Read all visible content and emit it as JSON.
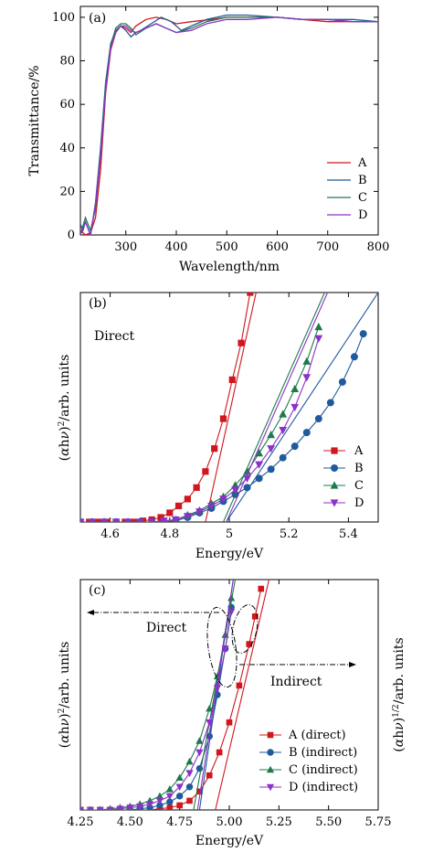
{
  "colors": {
    "A": "#d0161e",
    "B": "#1f5a9c",
    "C": "#1e7a4a",
    "D": "#8b32c8"
  },
  "chart_data": [
    {
      "id": "a",
      "type": "line",
      "panel_label": "(a)",
      "xlabel": "Wavelength/nm",
      "ylabel": "Transmittance/%",
      "xlim": [
        210,
        800
      ],
      "ylim": [
        0,
        105
      ],
      "xticks": [
        300,
        400,
        500,
        600,
        700,
        800
      ],
      "yticks": [
        0,
        20,
        40,
        60,
        80,
        100
      ],
      "legend": "right",
      "series": [
        {
          "name": "A",
          "key": "A",
          "x": [
            210,
            220,
            230,
            240,
            250,
            260,
            270,
            280,
            290,
            300,
            310,
            320,
            340,
            360,
            380,
            400,
            430,
            470,
            500,
            540,
            600,
            650,
            700,
            750,
            800
          ],
          "y": [
            2,
            0,
            1,
            8,
            30,
            65,
            85,
            93,
            96,
            95,
            93,
            96,
            99,
            100,
            99,
            97,
            98,
            99,
            100,
            100,
            100,
            99,
            98,
            98,
            98
          ]
        },
        {
          "name": "B",
          "key": "B",
          "x": [
            210,
            215,
            220,
            230,
            240,
            250,
            260,
            270,
            280,
            290,
            300,
            310,
            320,
            330,
            350,
            370,
            390,
            410,
            430,
            460,
            500,
            540,
            600,
            650,
            700,
            750,
            800
          ],
          "y": [
            5,
            2,
            6,
            0,
            15,
            40,
            70,
            88,
            94,
            96,
            94,
            91,
            93,
            94,
            97,
            100,
            98,
            94,
            96,
            99,
            101,
            101,
            100,
            99,
            99,
            99,
            98
          ]
        },
        {
          "name": "C",
          "key": "C",
          "x": [
            210,
            220,
            230,
            240,
            250,
            260,
            270,
            280,
            290,
            300,
            310,
            320,
            340,
            360,
            380,
            400,
            430,
            460,
            500,
            540,
            600,
            650,
            700,
            750,
            800
          ],
          "y": [
            0,
            8,
            2,
            12,
            38,
            68,
            87,
            95,
            97,
            97,
            95,
            92,
            95,
            97,
            95,
            93,
            95,
            98,
            100,
            100,
            100,
            99,
            99,
            98,
            98
          ]
        },
        {
          "name": "D",
          "key": "D",
          "x": [
            210,
            220,
            230,
            240,
            250,
            260,
            270,
            280,
            290,
            300,
            310,
            320,
            340,
            360,
            380,
            400,
            430,
            460,
            500,
            540,
            600,
            650,
            700,
            750,
            800
          ],
          "y": [
            0,
            6,
            0,
            14,
            36,
            66,
            86,
            93,
            96,
            96,
            94,
            93,
            95,
            97,
            95,
            93,
            94,
            97,
            99,
            99,
            100,
            99,
            99,
            98,
            98
          ]
        }
      ]
    },
    {
      "id": "b",
      "type": "scatter",
      "panel_label": "(b)",
      "annotation": "Direct",
      "xlabel": "Energy/eV",
      "ylabel": "(αhν)²/arb. units",
      "xlim": [
        4.5,
        5.5
      ],
      "ylim": [
        0,
        100
      ],
      "xticks": [
        4.6,
        4.8,
        5.0,
        5.2,
        5.4
      ],
      "legend": "right",
      "series": [
        {
          "name": "A",
          "key": "A",
          "marker": "square",
          "x": [
            4.5,
            4.53,
            4.56,
            4.59,
            4.62,
            4.65,
            4.68,
            4.71,
            4.74,
            4.77,
            4.8,
            4.83,
            4.86,
            4.89,
            4.92,
            4.95,
            4.98,
            5.01,
            5.04,
            5.07
          ],
          "y": [
            0,
            0,
            0,
            0,
            0,
            0,
            0,
            0.5,
            1,
            2,
            4,
            7,
            10,
            15,
            22,
            32,
            45,
            62,
            78,
            100
          ],
          "fit": {
            "x": [
              4.92,
              5.09
            ],
            "y": [
              0,
              100
            ]
          }
        },
        {
          "name": "B",
          "key": "B",
          "marker": "circle",
          "x": [
            4.5,
            4.54,
            4.58,
            4.62,
            4.66,
            4.7,
            4.74,
            4.78,
            4.82,
            4.86,
            4.9,
            4.94,
            4.98,
            5.02,
            5.06,
            5.1,
            5.14,
            5.18,
            5.22,
            5.26,
            5.3,
            5.34,
            5.38,
            5.42,
            5.45
          ],
          "y": [
            0,
            0,
            0,
            0,
            0,
            0,
            0,
            0,
            0.5,
            2,
            4,
            6,
            9,
            12,
            15,
            19,
            23,
            28,
            33,
            39,
            45,
            52,
            61,
            72,
            82
          ],
          "fit": {
            "x": [
              4.99,
              5.5
            ],
            "y": [
              0,
              100
            ]
          }
        },
        {
          "name": "C",
          "key": "C",
          "marker": "triangle-up",
          "x": [
            4.5,
            4.54,
            4.58,
            4.62,
            4.66,
            4.7,
            4.74,
            4.78,
            4.82,
            4.86,
            4.9,
            4.94,
            4.98,
            5.02,
            5.06,
            5.1,
            5.14,
            5.18,
            5.22,
            5.26,
            5.3
          ],
          "y": [
            0,
            0,
            0,
            0,
            0,
            0,
            0,
            0.5,
            1,
            3,
            5,
            8,
            11,
            16,
            22,
            30,
            38,
            47,
            58,
            70,
            85
          ],
          "fit": {
            "x": [
              4.98,
              5.32
            ],
            "y": [
              0,
              100
            ]
          }
        },
        {
          "name": "D",
          "key": "D",
          "marker": "triangle-down",
          "x": [
            4.5,
            4.54,
            4.58,
            4.62,
            4.66,
            4.7,
            4.74,
            4.78,
            4.82,
            4.86,
            4.9,
            4.94,
            4.98,
            5.02,
            5.06,
            5.1,
            5.14,
            5.18,
            5.22,
            5.26,
            5.3
          ],
          "y": [
            0,
            0,
            0,
            0,
            0,
            0,
            0,
            0.5,
            1,
            2.5,
            4.5,
            7,
            10,
            14,
            19,
            25,
            32,
            40,
            50,
            63,
            80
          ],
          "fit": {
            "x": [
              4.99,
              5.33
            ],
            "y": [
              0,
              100
            ]
          }
        }
      ]
    },
    {
      "id": "c",
      "type": "scatter",
      "panel_label": "(c)",
      "annotations": [
        "Direct",
        "Indirect"
      ],
      "xlabel": "Energy/eV",
      "ylabel": "(αhν)²/arb. units",
      "ylabel_right": "(αhν)^1/2/arb. units",
      "xlim": [
        4.25,
        5.75
      ],
      "ylim": [
        0,
        100
      ],
      "xticks": [
        4.25,
        4.5,
        4.75,
        5.0,
        5.25,
        5.5,
        5.75
      ],
      "xtick_labels": [
        "4.25",
        "4.50",
        "4.75",
        "5.00",
        "5.25",
        "5.50",
        "5.75"
      ],
      "legend": "bottom-right",
      "series": [
        {
          "name": "A (direct)",
          "key": "A",
          "marker": "square",
          "x": [
            4.25,
            4.3,
            4.35,
            4.4,
            4.45,
            4.5,
            4.55,
            4.6,
            4.65,
            4.7,
            4.75,
            4.8,
            4.85,
            4.9,
            4.95,
            5.0,
            5.05,
            5.1,
            5.13,
            5.16
          ],
          "y": [
            0,
            0,
            0,
            0,
            0,
            0,
            0,
            0,
            0.5,
            1,
            2,
            4,
            8,
            15,
            25,
            38,
            54,
            72,
            84,
            96
          ],
          "fit": {
            "x": [
              4.93,
              5.2
            ],
            "y": [
              0,
              100
            ]
          }
        },
        {
          "name": "B (indirect)",
          "key": "B",
          "marker": "circle",
          "x": [
            4.25,
            4.3,
            4.35,
            4.4,
            4.45,
            4.5,
            4.55,
            4.6,
            4.65,
            4.7,
            4.75,
            4.8,
            4.85,
            4.9,
            4.94,
            4.98,
            5.01
          ],
          "y": [
            0,
            0,
            0,
            0,
            0,
            0,
            0.5,
            1,
            2,
            3.5,
            6,
            10,
            18,
            32,
            50,
            70,
            88
          ],
          "fit": {
            "x": [
              4.85,
              5.02
            ],
            "y": [
              0,
              100
            ]
          }
        },
        {
          "name": "C (indirect)",
          "key": "C",
          "marker": "triangle-up",
          "x": [
            4.25,
            4.3,
            4.35,
            4.4,
            4.45,
            4.5,
            4.55,
            4.6,
            4.65,
            4.7,
            4.75,
            4.8,
            4.85,
            4.9,
            4.94,
            4.98,
            5.01
          ],
          "y": [
            0,
            0,
            0,
            0.5,
            1,
            1.5,
            2.5,
            4,
            6,
            9,
            14,
            21,
            30,
            44,
            58,
            76,
            92
          ],
          "fit": {
            "x": [
              4.82,
              5.03
            ],
            "y": [
              0,
              100
            ]
          }
        },
        {
          "name": "D (indirect)",
          "key": "D",
          "marker": "triangle-down",
          "x": [
            4.25,
            4.3,
            4.35,
            4.4,
            4.45,
            4.5,
            4.55,
            4.6,
            4.65,
            4.7,
            4.75,
            4.8,
            4.85,
            4.9,
            4.94,
            4.98,
            5.01
          ],
          "y": [
            0,
            0,
            0,
            0,
            0.5,
            1,
            1.5,
            2.5,
            4,
            6,
            10,
            16,
            25,
            38,
            53,
            70,
            86
          ],
          "fit": {
            "x": [
              4.84,
              5.02
            ],
            "y": [
              0,
              100
            ]
          }
        }
      ]
    }
  ]
}
